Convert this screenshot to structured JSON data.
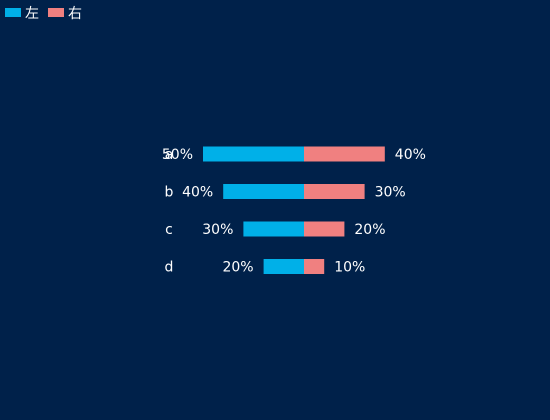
{
  "chart_data": {
    "type": "bar",
    "orientation": "horizontal",
    "layout": "diverging",
    "categories": [
      "a",
      "b",
      "c",
      "d"
    ],
    "series": [
      {
        "name": "左",
        "color": "#00b0e8",
        "values": [
          50,
          40,
          30,
          20
        ]
      },
      {
        "name": "右",
        "color": "#f08080",
        "values": [
          40,
          30,
          20,
          10
        ]
      }
    ],
    "value_suffix": "%",
    "legend_position": "top-left",
    "grid": false,
    "text_color": "#ffffff",
    "background": "#00214a"
  }
}
